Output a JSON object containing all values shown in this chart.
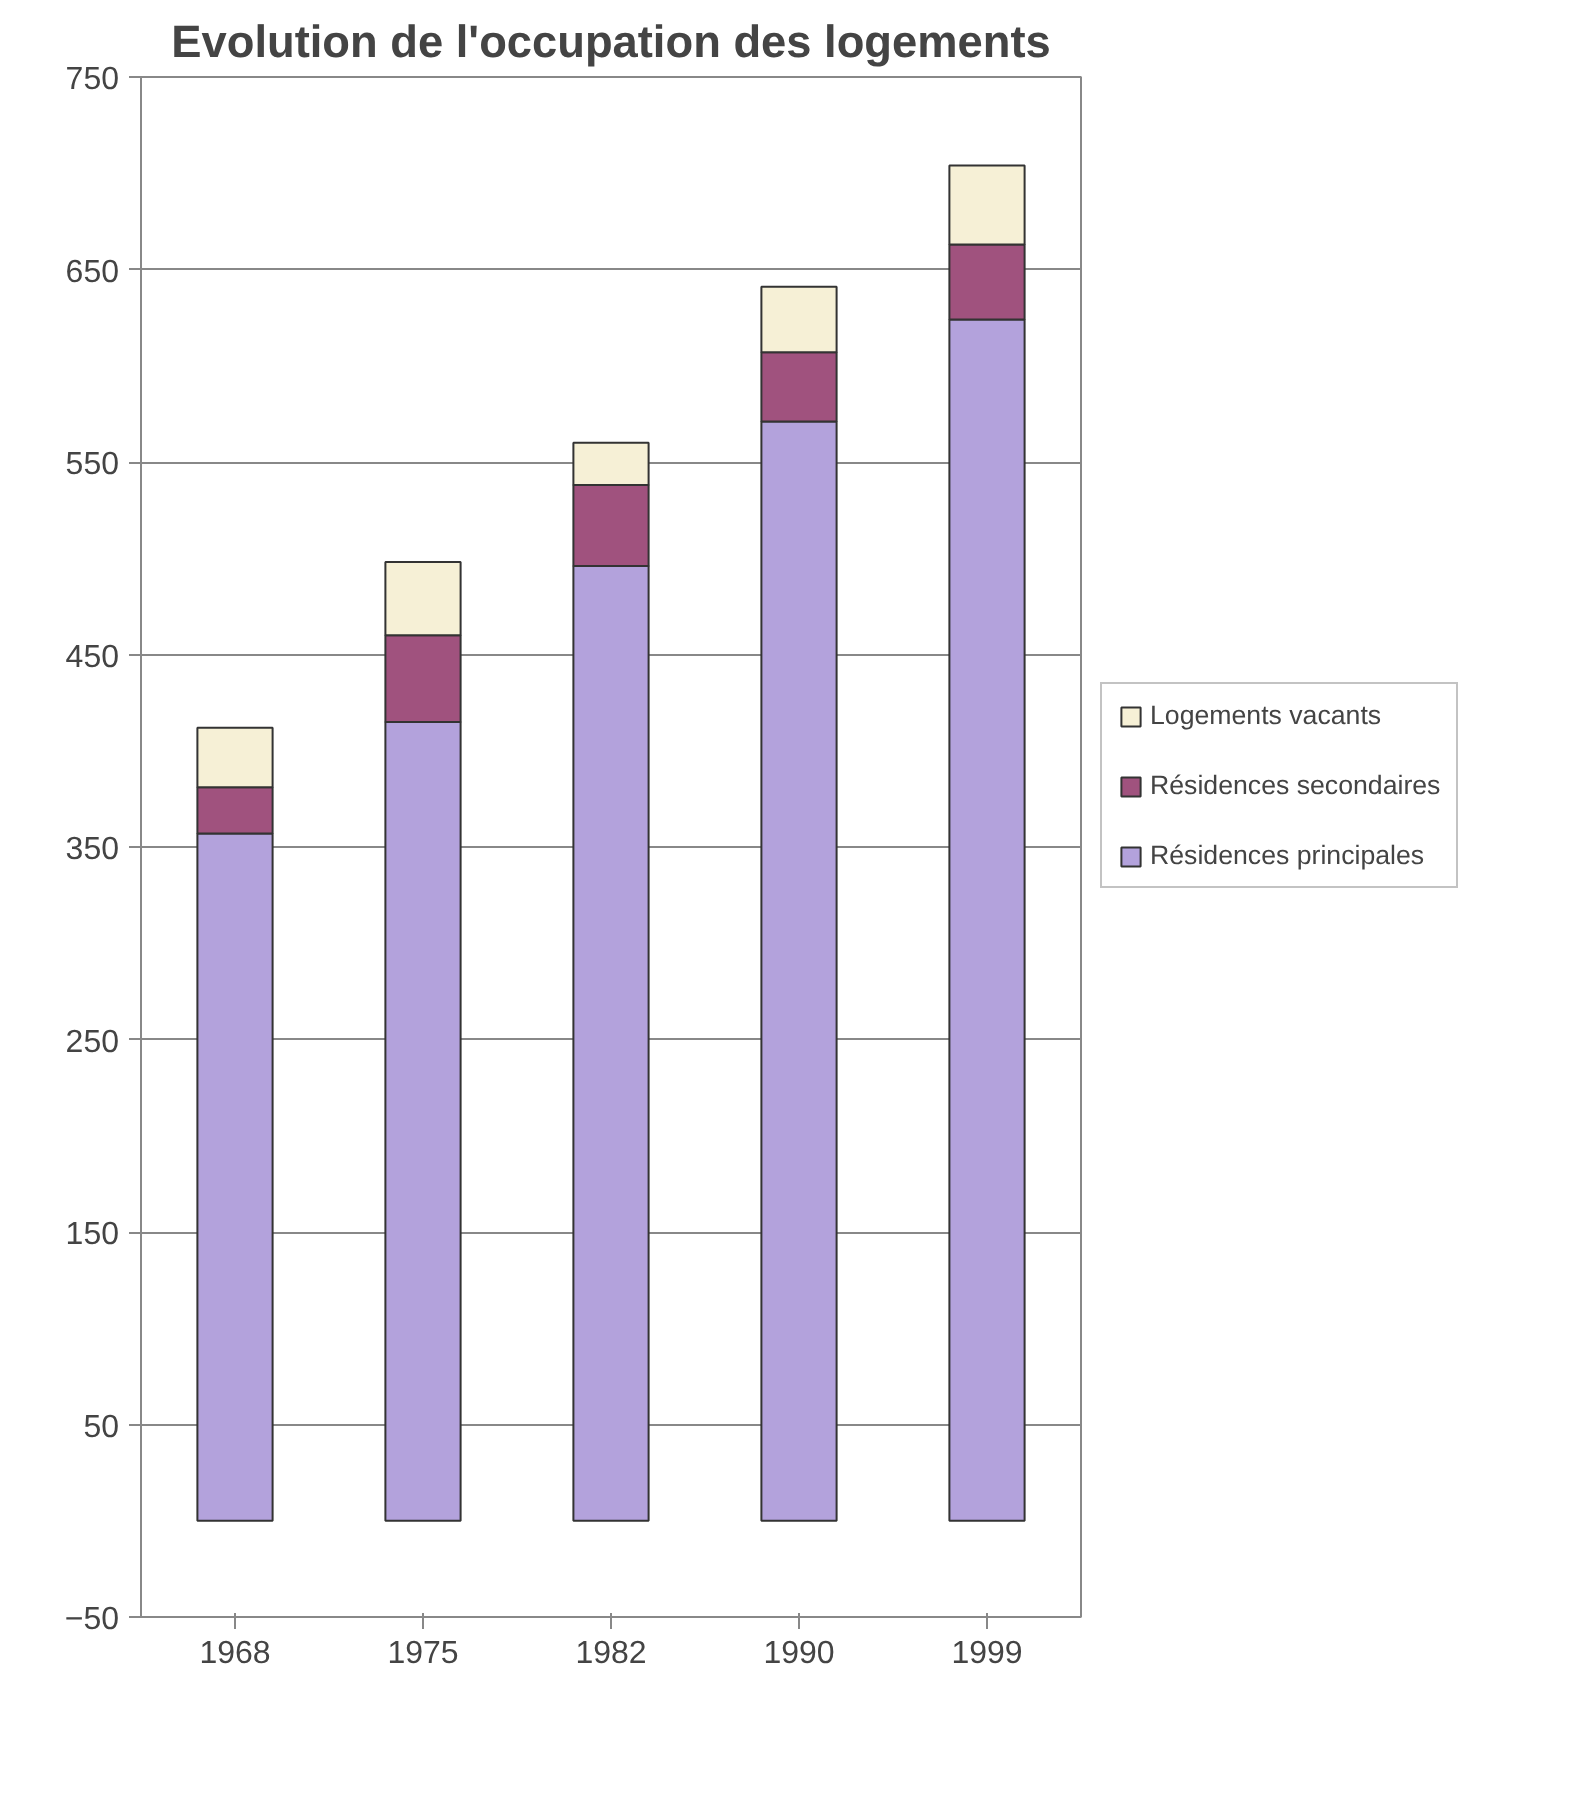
{
  "chart_data": {
    "type": "bar",
    "title": "Evolution de l'occupation des logements",
    "categories": [
      "1968",
      "1975",
      "1982",
      "1990",
      "1999"
    ],
    "stacked": true,
    "series": [
      {
        "name": "Résidences principales",
        "color": "#b3a2dc",
        "values": [
          357,
          415,
          496,
          571,
          624
        ]
      },
      {
        "name": "Résidences secondaires",
        "color": "#a0527e",
        "values": [
          24,
          45,
          42,
          36,
          39
        ]
      },
      {
        "name": "Logements vacants",
        "color": "#f6f0d6",
        "values": [
          31,
          38,
          22,
          34,
          41
        ]
      }
    ],
    "ylim": [
      -50,
      750
    ],
    "yticks": [
      -50,
      50,
      150,
      250,
      350,
      450,
      550,
      650,
      750
    ],
    "grid": "y",
    "legend": "right"
  }
}
